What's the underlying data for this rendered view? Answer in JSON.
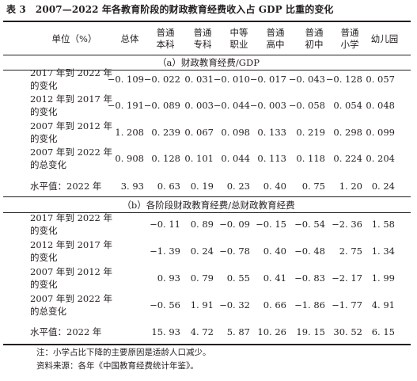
{
  "title": "表 3　2007—2022 年各教育阶段的财政教育经费收入占 GDP 比重的变化",
  "header": {
    "unit": "单位（%）",
    "columns": [
      [
        "总体"
      ],
      [
        "普通",
        "本科"
      ],
      [
        "普通",
        "专科"
      ],
      [
        "中等",
        "职业"
      ],
      [
        "普通",
        "高中"
      ],
      [
        "普通",
        "初中"
      ],
      [
        "普通",
        "小学"
      ],
      [
        "幼儿园"
      ]
    ]
  },
  "sections": [
    {
      "heading": "（a）财政教育经费/GDP",
      "rows": [
        {
          "label": [
            "2017 年到 2022 年",
            "的变化"
          ],
          "values": [
            "−0. 109",
            "−0. 022",
            "0. 031",
            "−0. 010",
            "−0. 017",
            "−0. 043",
            "−0. 128",
            "0. 057"
          ]
        },
        {
          "label": [
            "2012 年到 2017 年",
            "的变化"
          ],
          "values": [
            "−0. 191",
            "−0. 089",
            "0. 003",
            "−0. 044",
            "−0. 003",
            "−0. 058",
            "0. 054",
            "0. 048"
          ]
        },
        {
          "label": [
            "2007 年到 2012 年",
            "的变化"
          ],
          "values": [
            "1. 208",
            "0. 239",
            "0. 067",
            "0. 098",
            "0. 133",
            "0. 219",
            "0. 298",
            "0. 099"
          ]
        },
        {
          "label": [
            "2007 年到 2022 年",
            "的总变化"
          ],
          "values": [
            "0. 908",
            "0. 128",
            "0. 101",
            "0. 044",
            "0. 113",
            "0. 118",
            "0. 224",
            "0. 204"
          ]
        },
        {
          "label": [
            "水平值：2022 年"
          ],
          "values": [
            "3. 93",
            "0. 63",
            "0. 19",
            "0. 23",
            "0. 40",
            "0. 75",
            "1. 20",
            "0. 24"
          ]
        }
      ]
    },
    {
      "heading": "（b）各阶段财政教育经费/总财政教育经费",
      "rows": [
        {
          "label": [
            "2017 年到 2022 年",
            "的变化"
          ],
          "values": [
            "",
            "−0. 11",
            "0. 89",
            "−0. 09",
            "−0. 15",
            "−0. 54",
            "−2. 36",
            "1. 58"
          ]
        },
        {
          "label": [
            "2012 年到 2017 年",
            "的变化"
          ],
          "values": [
            "",
            "−1. 39",
            "0. 24",
            "−0. 78",
            "0. 40",
            "−0. 48",
            "2. 75",
            "1. 34"
          ]
        },
        {
          "label": [
            "2007 年到 2012 年",
            "的变化"
          ],
          "values": [
            "",
            "0. 93",
            "0. 79",
            "0. 55",
            "0. 41",
            "−0. 83",
            "−2. 17",
            "1. 99"
          ]
        },
        {
          "label": [
            "2007 年到 2022 年",
            "的总变化"
          ],
          "values": [
            "",
            "−0. 56",
            "1. 91",
            "−0. 32",
            "0. 66",
            "−1. 86",
            "−1. 77",
            "4. 91"
          ]
        },
        {
          "label": [
            "水平值：2022 年"
          ],
          "values": [
            "",
            "15. 93",
            "4. 72",
            "5. 87",
            "10. 26",
            "19. 15",
            "30. 52",
            "6. 15"
          ]
        }
      ]
    }
  ],
  "notes": [
    "注：小学占比下降的主要原因是适龄人口减少。",
    "资料来源：各年《中国教育经费统计年鉴》。"
  ]
}
